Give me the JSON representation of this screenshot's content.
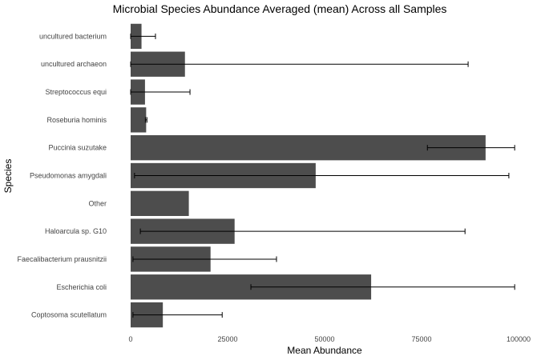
{
  "chart_data": {
    "type": "bar",
    "orientation": "horizontal",
    "title": "Microbial Species Abundance Averaged (mean) Across all Samples",
    "xlabel": "Mean Abundance",
    "ylabel": "Species",
    "xlim": [
      0,
      100000
    ],
    "xticks": [
      0,
      25000,
      50000,
      75000,
      100000
    ],
    "grid": false,
    "bar_color": "#4d4d4d",
    "categories": [
      "uncultured bacterium",
      "uncultured archaeon",
      "Streptococcus equi",
      "Roseburia hominis",
      "Puccinia suzutake",
      "Pseudomonas amygdali",
      "Other",
      "Haloarcula sp. G10",
      "Faecalibacterium prausnitzii",
      "Escherichia coli",
      "Coptosoma scutellatum"
    ],
    "values": [
      2800,
      14000,
      3700,
      4000,
      91500,
      47700,
      15000,
      26800,
      20600,
      62000,
      8300
    ],
    "error_bars": [
      [
        0,
        6400
      ],
      [
        0,
        87000
      ],
      [
        0,
        15300
      ],
      [
        3800,
        4200
      ],
      [
        76500,
        99000
      ],
      [
        1000,
        97500
      ],
      null,
      [
        2500,
        86200
      ],
      [
        600,
        37600
      ],
      [
        31000,
        99000
      ],
      [
        600,
        23600
      ]
    ]
  }
}
